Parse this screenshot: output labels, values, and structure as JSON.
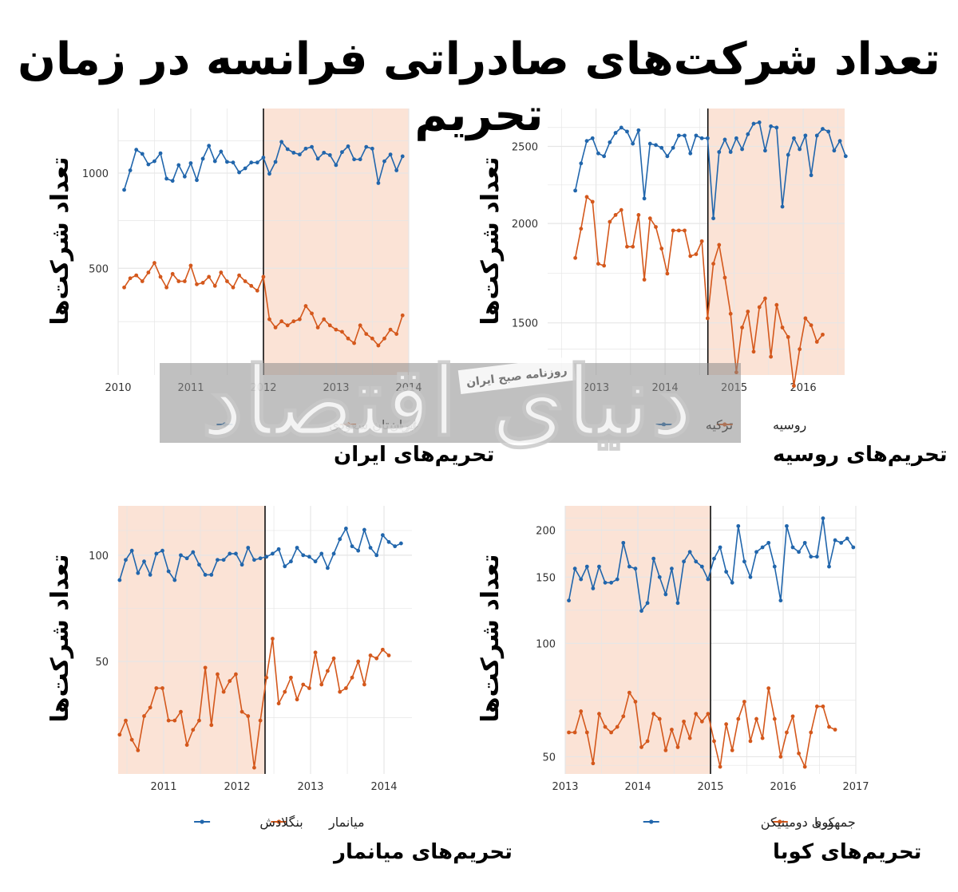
{
  "title": "تعداد شرکت‌های صادراتی فرانسه در زمان تحریم",
  "watermark": {
    "logo_text": "دنیای اقتصاد",
    "subtext": "روزنامه صبح ایران"
  },
  "colors": {
    "blue": "#2166ac",
    "orange": "#d4581c",
    "shade": "#fbe3d6",
    "grid": "#e6e6e6",
    "watermark_band": "#8c8c8c"
  },
  "chart_data": [
    {
      "id": "iran",
      "type": "line",
      "subtitle": "تحریم‌های ایران",
      "ylabel": "تعداد شرکت‌ها",
      "y_scale": "log",
      "ylim": [
        230,
        1600
      ],
      "yticks": [
        500,
        1000
      ],
      "xlim": [
        2010.0,
        2014.0
      ],
      "xticks": [
        2010,
        2011,
        2012,
        2013,
        2014
      ],
      "event_x": 2012.0,
      "shade": [
        2012.0,
        2014.0
      ],
      "grid": true,
      "legend": {
        "position": "bottom",
        "order": [
          "ایران",
          "عربستان سعودی"
        ]
      },
      "series": [
        {
          "name": "عربستان سعودی",
          "color": "#2166ac",
          "x_start": 2010.083,
          "x_step": 0.0833,
          "values": [
            885,
            1020,
            1185,
            1150,
            1065,
            1090,
            1155,
            960,
            945,
            1060,
            975,
            1075,
            950,
            1110,
            1220,
            1090,
            1170,
            1085,
            1080,
            1005,
            1035,
            1080,
            1080,
            1120,
            995,
            1085,
            1255,
            1190,
            1160,
            1145,
            1195,
            1210,
            1110,
            1160,
            1140,
            1060,
            1165,
            1215,
            1105,
            1105,
            1210,
            1195,
            930,
            1090,
            1145,
            1020,
            1130
          ]
        },
        {
          "name": "ایران",
          "color": "#d4581c",
          "x_start": 2010.083,
          "x_step": 0.0833,
          "values": [
            435,
            465,
            475,
            455,
            485,
            520,
            470,
            435,
            480,
            455,
            455,
            510,
            445,
            450,
            470,
            440,
            485,
            455,
            435,
            475,
            455,
            440,
            425,
            470,
            345,
            325,
            340,
            330,
            340,
            345,
            380,
            360,
            325,
            345,
            330,
            320,
            315,
            300,
            290,
            330,
            310,
            300,
            285,
            300,
            320,
            310,
            355
          ]
        }
      ]
    },
    {
      "id": "russia",
      "type": "line",
      "subtitle": "تحریم‌های روسیه",
      "ylabel": "تعداد شرکت‌ها",
      "y_scale": "log",
      "ylim": [
        1290,
        2790
      ],
      "yticks": [
        1500,
        2000,
        2500
      ],
      "xlim": [
        2012.3,
        2016.6
      ],
      "xticks": [
        2013,
        2014,
        2015,
        2016
      ],
      "event_x": 2014.62,
      "shade": [
        2014.62,
        2016.6
      ],
      "grid": true,
      "legend": {
        "position": "bottom",
        "order": [
          "روسیه",
          "ترکیه"
        ]
      },
      "series": [
        {
          "name": "ترکیه",
          "color": "#2166ac",
          "x_start": 2012.7,
          "x_step": 0.0833,
          "values": [
            2200,
            2380,
            2540,
            2560,
            2450,
            2430,
            2530,
            2600,
            2640,
            2610,
            2520,
            2620,
            2150,
            2520,
            2510,
            2490,
            2430,
            2490,
            2580,
            2580,
            2450,
            2580,
            2560,
            2560,
            2030,
            2460,
            2550,
            2460,
            2560,
            2480,
            2590,
            2670,
            2680,
            2470,
            2650,
            2640,
            2100,
            2440,
            2560,
            2480,
            2580,
            2300,
            2580,
            2630,
            2610,
            2470,
            2540,
            2430
          ]
        },
        {
          "name": "روسیه",
          "color": "#d4581c",
          "x_start": 2012.7,
          "x_step": 0.0833,
          "values": [
            1810,
            1970,
            2160,
            2130,
            1780,
            1770,
            2010,
            2050,
            2080,
            1870,
            1870,
            2050,
            1700,
            2030,
            1980,
            1860,
            1730,
            1960,
            1960,
            1960,
            1820,
            1830,
            1900,
            1520,
            1780,
            1880,
            1710,
            1540,
            1300,
            1480,
            1550,
            1380,
            1570,
            1610,
            1360,
            1580,
            1480,
            1440,
            1250,
            1390,
            1520,
            1490,
            1420,
            1450
          ]
        }
      ]
    },
    {
      "id": "myanmar",
      "type": "line",
      "subtitle": "تحریم‌های میانمار",
      "ylabel": "تعداد شرکت‌ها",
      "y_scale": "log",
      "ylim": [
        24,
        138
      ],
      "yticks": [
        50,
        100
      ],
      "xlim": [
        2010.38,
        2014.38
      ],
      "xticks": [
        2011,
        2012,
        2013,
        2014
      ],
      "event_x": 2012.38,
      "shade": [
        2010.38,
        2012.38
      ],
      "grid": true,
      "legend": {
        "position": "bottom",
        "order": [
          "میانمار",
          "بنگلادش"
        ]
      },
      "series": [
        {
          "name": "بنگلادش",
          "color": "#2166ac",
          "x_start": 2010.4,
          "x_step": 0.0833,
          "values": [
            85,
            97,
            103,
            89,
            96,
            88,
            101,
            103,
            90,
            85,
            100,
            98,
            102,
            94,
            88,
            88,
            97,
            97,
            101,
            101,
            94,
            105,
            97,
            98,
            99,
            101,
            104,
            93,
            96,
            105,
            100,
            99,
            96,
            101,
            92,
            101,
            111,
            119,
            106,
            103,
            118,
            105,
            100,
            114,
            109,
            106,
            108
          ]
        },
        {
          "name": "میانمار",
          "color": "#d4581c",
          "x_start": 2010.4,
          "x_step": 0.0833,
          "values": [
            31,
            34,
            30,
            28,
            35,
            37,
            42,
            42,
            34,
            34,
            36,
            29,
            32,
            34,
            48,
            33,
            46,
            41,
            44,
            46,
            36,
            35,
            25,
            34,
            45,
            58,
            38,
            41,
            45,
            39,
            43,
            42,
            53,
            43,
            47,
            51,
            41,
            42,
            45,
            50,
            43,
            52,
            51,
            54,
            52
          ]
        }
      ]
    },
    {
      "id": "cuba",
      "type": "line",
      "subtitle": "تحریم‌های کوبا",
      "ylabel": "تعداد شرکت‌ها",
      "y_scale": "log",
      "ylim": [
        45,
        232
      ],
      "yticks": [
        50,
        100,
        150,
        200
      ],
      "xlim": [
        2013.0,
        2017.0
      ],
      "xticks": [
        2013,
        2014,
        2015,
        2016,
        2017
      ],
      "event_x": 2015.0,
      "shade": [
        2013.0,
        2015.0
      ],
      "grid": true,
      "legend": {
        "position": "bottom",
        "order": [
          "کوبا",
          "جمهوری دومینیکن"
        ]
      },
      "series": [
        {
          "name": "جمهوری دومینیکن",
          "color": "#2166ac",
          "x_start": 2013.05,
          "x_step": 0.0833,
          "values": [
            130,
            158,
            148,
            160,
            140,
            160,
            145,
            145,
            148,
            185,
            160,
            158,
            122,
            128,
            168,
            150,
            135,
            158,
            128,
            165,
            175,
            165,
            160,
            148,
            168,
            180,
            155,
            145,
            205,
            165,
            150,
            175,
            180,
            185,
            160,
            130,
            205,
            180,
            175,
            185,
            170,
            170,
            215,
            160,
            188,
            185,
            190,
            180
          ]
        },
        {
          "name": "کوبا",
          "color": "#d4581c",
          "x_start": 2013.05,
          "x_step": 0.0833,
          "values": [
            58,
            58,
            66,
            58,
            48,
            65,
            60,
            58,
            60,
            64,
            74,
            70,
            53,
            55,
            65,
            63,
            52,
            59,
            53,
            62,
            56,
            65,
            62,
            65,
            55,
            47,
            61,
            52,
            63,
            70,
            55,
            63,
            56,
            76,
            63,
            50,
            58,
            64,
            51,
            47,
            58,
            68,
            68,
            60,
            59
          ]
        }
      ]
    }
  ]
}
